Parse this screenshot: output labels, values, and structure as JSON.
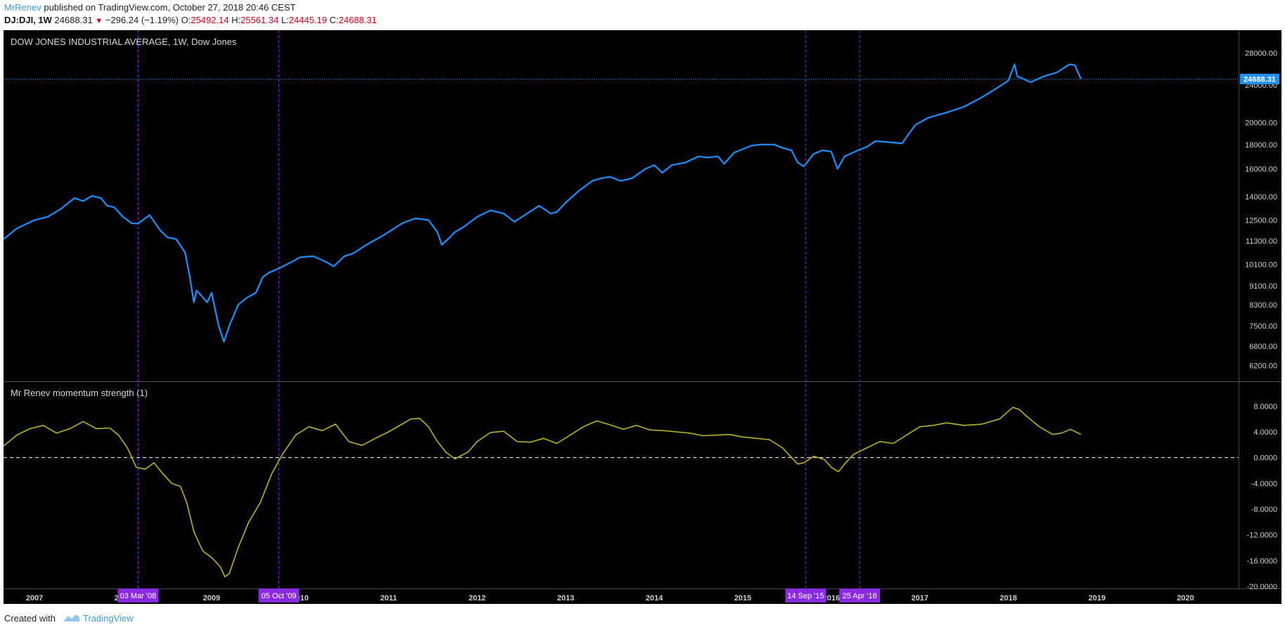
{
  "header": {
    "author": "MrRenev",
    "published": "published on TradingView.com, October 27, 2018 20:46 CEST",
    "symbol": "DJ:DJI, 1W",
    "last": "24688.31",
    "change": "−296.24 (−1.19%)",
    "o_label": "O:",
    "o_value": "25492.14",
    "h_label": "H:",
    "h_value": "25561.34",
    "l_label": "L:",
    "l_value": "24445.19",
    "c_label": "C:",
    "c_value": "24688.31"
  },
  "footer": {
    "created_with": "Created with",
    "brand": "TradingView"
  },
  "colors": {
    "background": "#000000",
    "price_line": "#1e90ff",
    "momentum_line": "#bdb128",
    "marker": "#8a2be2",
    "zero_line": "#ffffff"
  },
  "chart_data": [
    {
      "type": "line",
      "title": "DOW JONES INDUSTRIAL AVERAGE, 1W, Dow Jones",
      "scale": "log",
      "xlim": [
        2006.65,
        2020.6
      ],
      "ylim": [
        6000,
        29500
      ],
      "yticks": [
        "28000.00",
        "24000.00",
        "20000.00",
        "18000.00",
        "16000.00",
        "14000.00",
        "12500.00",
        "11300.00",
        "10100.00",
        "9100.00",
        "8300.00",
        "7500.00",
        "6800.00",
        "6200.00"
      ],
      "last_value_label": "24688.31",
      "series": [
        {
          "x": [
            2006.65,
            2006.8,
            2007.0,
            2007.15,
            2007.3,
            2007.45,
            2007.55,
            2007.65,
            2007.75,
            2007.82,
            2007.9,
            2008.0,
            2008.1,
            2008.17,
            2008.3,
            2008.42,
            2008.5,
            2008.6,
            2008.7,
            2008.75,
            2008.8,
            2008.83,
            2008.88,
            2008.95,
            2009.0,
            2009.08,
            2009.14,
            2009.2,
            2009.3,
            2009.4,
            2009.5,
            2009.58,
            2009.65,
            2009.76,
            2009.9,
            2010.0,
            2010.15,
            2010.3,
            2010.38,
            2010.5,
            2010.6,
            2010.75,
            2010.9,
            2011.0,
            2011.15,
            2011.3,
            2011.45,
            2011.55,
            2011.6,
            2011.67,
            2011.75,
            2011.85,
            2012.0,
            2012.15,
            2012.3,
            2012.42,
            2012.55,
            2012.7,
            2012.83,
            2012.9,
            2013.0,
            2013.15,
            2013.3,
            2013.4,
            2013.5,
            2013.62,
            2013.75,
            2013.9,
            2014.0,
            2014.09,
            2014.2,
            2014.35,
            2014.5,
            2014.6,
            2014.72,
            2014.79,
            2014.9,
            2015.0,
            2015.1,
            2015.2,
            2015.35,
            2015.45,
            2015.55,
            2015.62,
            2015.69,
            2015.8,
            2015.9,
            2016.0,
            2016.07,
            2016.15,
            2016.3,
            2016.4,
            2016.5,
            2016.65,
            2016.8,
            2016.88,
            2016.95,
            2017.1,
            2017.3,
            2017.5,
            2017.7,
            2017.85,
            2018.0,
            2018.07,
            2018.1,
            2018.15,
            2018.25,
            2018.4,
            2018.55,
            2018.69,
            2018.75,
            2018.82
          ],
          "values": [
            11400,
            12000,
            12500,
            12700,
            13200,
            13900,
            13700,
            14050,
            13900,
            13400,
            13300,
            12700,
            12300,
            12300,
            12800,
            11900,
            11500,
            11400,
            10700,
            9600,
            8400,
            8900,
            8700,
            8400,
            8800,
            7500,
            6950,
            7500,
            8300,
            8600,
            8800,
            9500,
            9700,
            9900,
            10200,
            10450,
            10500,
            10200,
            10000,
            10500,
            10650,
            11100,
            11500,
            11800,
            12300,
            12600,
            12500,
            11800,
            11100,
            11400,
            11800,
            12100,
            12700,
            13100,
            12900,
            12400,
            12850,
            13400,
            12900,
            13000,
            13600,
            14400,
            15100,
            15300,
            15400,
            15100,
            15300,
            16000,
            16300,
            15700,
            16300,
            16500,
            17000,
            16900,
            17000,
            16400,
            17300,
            17600,
            17900,
            18000,
            18000,
            17700,
            17500,
            16500,
            16200,
            17200,
            17500,
            17400,
            16000,
            17000,
            17500,
            17800,
            18300,
            18200,
            18100,
            19000,
            19800,
            20500,
            21000,
            21600,
            22600,
            23500,
            24500,
            26500,
            25000,
            24800,
            24300,
            25000,
            25500,
            26500,
            26400,
            24688
          ]
        }
      ]
    },
    {
      "type": "line",
      "title": "Mr Renev momentum strength (1)",
      "xlim": [
        2006.65,
        2020.6
      ],
      "ylim": [
        -20,
        10
      ],
      "yticks": [
        "8.0000",
        "4.0000",
        "0.0000",
        "-4.0000",
        "-8.0000",
        "-12.0000",
        "-16.0000",
        "-20.0000"
      ],
      "zero_line": 0,
      "series": [
        {
          "x": [
            2006.65,
            2006.8,
            2006.95,
            2007.1,
            2007.25,
            2007.4,
            2007.55,
            2007.7,
            2007.85,
            2007.95,
            2008.05,
            2008.15,
            2008.25,
            2008.35,
            2008.45,
            2008.55,
            2008.65,
            2008.72,
            2008.8,
            2008.9,
            2009.0,
            2009.1,
            2009.15,
            2009.2,
            2009.3,
            2009.42,
            2009.55,
            2009.68,
            2009.8,
            2009.95,
            2010.1,
            2010.25,
            2010.4,
            2010.55,
            2010.7,
            2010.85,
            2011.0,
            2011.15,
            2011.25,
            2011.35,
            2011.45,
            2011.55,
            2011.65,
            2011.75,
            2011.9,
            2012.0,
            2012.15,
            2012.3,
            2012.45,
            2012.6,
            2012.75,
            2012.9,
            2013.05,
            2013.2,
            2013.35,
            2013.5,
            2013.65,
            2013.8,
            2013.95,
            2014.1,
            2014.25,
            2014.4,
            2014.55,
            2014.7,
            2014.85,
            2015.0,
            2015.15,
            2015.3,
            2015.45,
            2015.55,
            2015.62,
            2015.69,
            2015.8,
            2015.92,
            2016.0,
            2016.08,
            2016.15,
            2016.25,
            2016.4,
            2016.55,
            2016.7,
            2016.85,
            2017.0,
            2017.15,
            2017.3,
            2017.5,
            2017.7,
            2017.9,
            2018.0,
            2018.05,
            2018.12,
            2018.2,
            2018.35,
            2018.5,
            2018.6,
            2018.7,
            2018.82
          ],
          "values": [
            1.8,
            3.5,
            4.5,
            5.0,
            3.8,
            4.5,
            5.6,
            4.5,
            4.6,
            3.5,
            1.5,
            -1.5,
            -1.8,
            -0.8,
            -2.5,
            -4.0,
            -4.5,
            -7.0,
            -11.5,
            -14.5,
            -15.5,
            -17.0,
            -18.5,
            -18.0,
            -14.0,
            -10.0,
            -7.0,
            -2.5,
            0.5,
            3.5,
            4.8,
            4.2,
            5.2,
            2.5,
            1.9,
            3.0,
            4.0,
            5.2,
            6.0,
            6.1,
            4.8,
            2.5,
            0.8,
            -0.2,
            0.9,
            2.5,
            3.9,
            4.1,
            2.5,
            2.4,
            3.0,
            2.2,
            3.5,
            4.8,
            5.7,
            5.1,
            4.4,
            5.0,
            4.3,
            4.2,
            4.0,
            3.8,
            3.4,
            3.5,
            3.6,
            3.2,
            3.0,
            2.8,
            1.5,
            0.0,
            -1.0,
            -0.8,
            0.2,
            -0.3,
            -1.5,
            -2.2,
            -1.0,
            0.5,
            1.5,
            2.5,
            2.2,
            3.5,
            4.8,
            5.0,
            5.4,
            5.0,
            5.2,
            6.0,
            7.2,
            7.8,
            7.5,
            6.5,
            4.8,
            3.6,
            3.8,
            4.4,
            3.6
          ]
        }
      ]
    }
  ],
  "x_axis": {
    "years": [
      2007,
      2008,
      2009,
      2010,
      2011,
      2012,
      2013,
      2014,
      2015,
      2016,
      2017,
      2018,
      2019,
      2020
    ],
    "labels": [
      "2007",
      "2008",
      "2009",
      "2010",
      "2011",
      "2012",
      "2013",
      "2014",
      "2015",
      "2016",
      "2017",
      "2018",
      "2019",
      "2020"
    ]
  },
  "markers": [
    {
      "x": 2008.17,
      "label": "03 Mar '08"
    },
    {
      "x": 2009.76,
      "label": "05 Oct '09"
    },
    {
      "x": 2015.71,
      "label": "14 Sep '15"
    },
    {
      "x": 2016.32,
      "label": "25 Apr '16"
    }
  ]
}
